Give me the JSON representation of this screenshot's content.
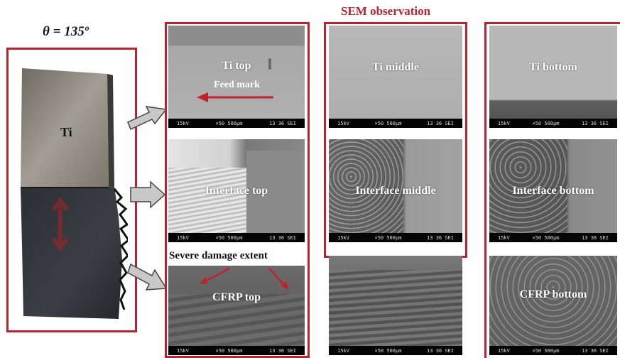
{
  "header": {
    "sem_title": "SEM observation",
    "angle": "θ = 135º"
  },
  "sample": {
    "ti_label": "Ti"
  },
  "scalebar": {
    "kv": "15kV",
    "mag": "×50 500μm",
    "code": "13 36 SEI"
  },
  "panels": {
    "ti_top": "Ti top",
    "feed_mark": "Feed mark",
    "ti_middle": "Ti middle",
    "ti_bottom": "Ti bottom",
    "interface_top": "Interface  top",
    "interface_middle": "Interface middle",
    "interface_bottom": "Interface bottom",
    "severe_damage": "Severe damage extent",
    "cfrp_top": "CFRP top",
    "cfrp_bottom": "CFRP bottom"
  },
  "colors": {
    "accent": "#c0222b",
    "frame": "#b8232d",
    "arrow_fill": "#c8c8c8"
  }
}
